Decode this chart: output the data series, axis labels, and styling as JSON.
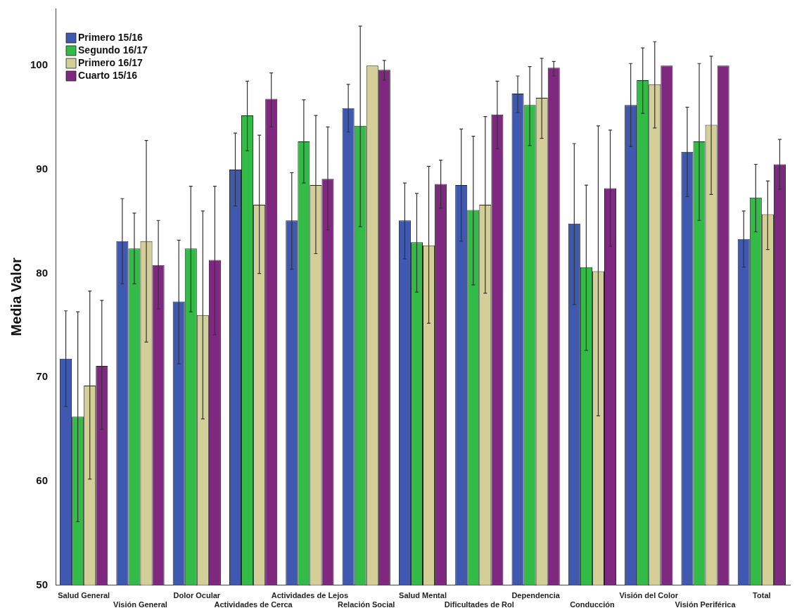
{
  "chart_data": {
    "type": "bar",
    "ylabel": "Media Valor",
    "categories": [
      "Salud General",
      "Visión General",
      "Dolor Ocular",
      "Actividades de Cerca",
      "Actividades de Lejos",
      "Relación Social",
      "Salud Mental",
      "Dificultades de Rol",
      "Dependencia",
      "Conducción",
      "Visión del Color",
      "Visión Periférica",
      "Total"
    ],
    "series": [
      {
        "name": "Primero 15/16",
        "color": "#3f58b0",
        "values": [
          71.8,
          83.1,
          77.3,
          90.0,
          85.1,
          95.9,
          85.1,
          88.5,
          97.3,
          84.8,
          96.2,
          91.7,
          83.3
        ],
        "errors": [
          [
            67.2,
            76.4
          ],
          [
            79.0,
            87.2
          ],
          [
            71.3,
            83.2
          ],
          [
            86.5,
            93.5
          ],
          [
            80.4,
            89.7
          ],
          [
            93.6,
            98.2
          ],
          [
            81.4,
            88.7
          ],
          [
            83.1,
            93.9
          ],
          [
            95.5,
            99.0
          ],
          [
            77.0,
            92.5
          ],
          [
            92.2,
            100.2
          ],
          [
            87.4,
            96.0
          ],
          [
            80.6,
            86.0
          ]
        ]
      },
      {
        "name": "Segundo 16/17",
        "color": "#33bb48",
        "values": [
          66.2,
          82.4,
          82.4,
          95.2,
          92.7,
          94.2,
          83.0,
          86.1,
          96.2,
          80.6,
          98.6,
          92.7,
          87.3
        ],
        "errors": [
          [
            56.1,
            76.3
          ],
          [
            79.0,
            85.8
          ],
          [
            76.3,
            88.4
          ],
          [
            91.8,
            98.5
          ],
          [
            88.7,
            96.7
          ],
          [
            84.5,
            103.8
          ],
          [
            78.2,
            87.7
          ],
          [
            78.9,
            93.2
          ],
          [
            92.3,
            99.9
          ],
          [
            72.6,
            88.5
          ],
          [
            95.4,
            101.7
          ],
          [
            85.1,
            100.2
          ],
          [
            84.0,
            90.5
          ]
        ]
      },
      {
        "name": "Primero 16/17",
        "color": "#d4cf98",
        "values": [
          69.2,
          83.1,
          76.0,
          86.6,
          88.5,
          100.0,
          82.7,
          86.6,
          96.9,
          80.2,
          98.2,
          94.3,
          85.7
        ],
        "errors": [
          [
            60.2,
            78.3
          ],
          [
            73.4,
            92.8
          ],
          [
            66.0,
            86.0
          ],
          [
            80.0,
            93.3
          ],
          [
            81.9,
            95.2
          ],
          null,
          [
            75.2,
            90.3
          ],
          [
            78.1,
            95.1
          ],
          [
            93.0,
            100.7
          ],
          [
            66.3,
            94.2
          ],
          [
            94.0,
            102.3
          ],
          [
            87.6,
            100.9
          ],
          [
            82.3,
            88.9
          ]
        ]
      },
      {
        "name": "Cuarto 15/16",
        "color": "#7e2880",
        "values": [
          71.1,
          80.8,
          81.3,
          96.8,
          89.1,
          99.6,
          88.6,
          95.3,
          99.8,
          88.2,
          100.0,
          100.0,
          90.5
        ],
        "errors": [
          [
            65.0,
            77.4
          ],
          [
            76.6,
            85.1
          ],
          [
            74.1,
            88.4
          ],
          [
            94.1,
            99.3
          ],
          [
            84.2,
            94.1
          ],
          [
            98.6,
            100.5
          ],
          [
            86.3,
            90.9
          ],
          [
            92.0,
            98.5
          ],
          [
            99.0,
            100.4
          ],
          [
            82.6,
            93.8
          ],
          null,
          null,
          [
            88.1,
            92.9
          ]
        ]
      }
    ],
    "ylim": [
      50,
      105.5
    ],
    "yticks": [
      50,
      60,
      70,
      80,
      90,
      100
    ],
    "grid": false,
    "legend": "top left"
  }
}
